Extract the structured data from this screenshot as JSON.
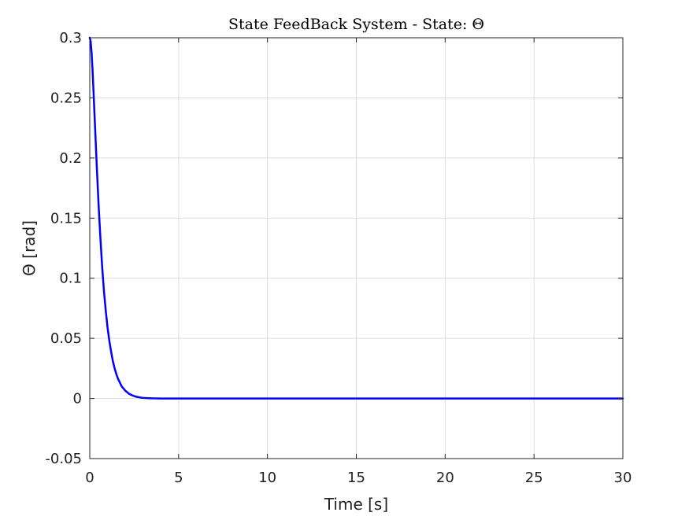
{
  "chart_data": {
    "type": "line",
    "title": "State FeedBack System - State: Θ",
    "xlabel": "Time [s]",
    "ylabel": "Θ [rad]",
    "xlim": [
      0,
      30
    ],
    "ylim": [
      -0.05,
      0.3
    ],
    "xticks": [
      0,
      5,
      10,
      15,
      20,
      25,
      30
    ],
    "xtick_labels": [
      "0",
      "5",
      "10",
      "15",
      "20",
      "25",
      "30"
    ],
    "yticks": [
      -0.05,
      0,
      0.05,
      0.1,
      0.15,
      0.2,
      0.25,
      0.3
    ],
    "ytick_labels": [
      "-0.05",
      "0",
      "0.05",
      "0.1",
      "0.15",
      "0.2",
      "0.25",
      "0.3"
    ],
    "grid": true,
    "series": [
      {
        "color": "#0000ff",
        "x": [
          0,
          0.05,
          0.1,
          0.15,
          0.2,
          0.3,
          0.4,
          0.5,
          0.6,
          0.7,
          0.8,
          0.9,
          1.0,
          1.1,
          1.2,
          1.3,
          1.4,
          1.5,
          1.6,
          1.7,
          1.8,
          2.0,
          2.2,
          2.4,
          2.6,
          2.8,
          3.0,
          3.2,
          3.5,
          4.0,
          5,
          10,
          15,
          20,
          25,
          30
        ],
        "y": [
          0.3,
          0.297,
          0.288,
          0.275,
          0.259,
          0.225,
          0.191,
          0.16,
          0.133,
          0.109,
          0.089,
          0.073,
          0.059,
          0.048,
          0.039,
          0.031,
          0.025,
          0.02,
          0.016,
          0.013,
          0.01,
          0.0065,
          0.004,
          0.0025,
          0.0015,
          0.0009,
          0.0005,
          0.0003,
          0.0001,
          0.0,
          0.0,
          0.0,
          0.0,
          0.0,
          0.0,
          0.0
        ]
      }
    ]
  }
}
